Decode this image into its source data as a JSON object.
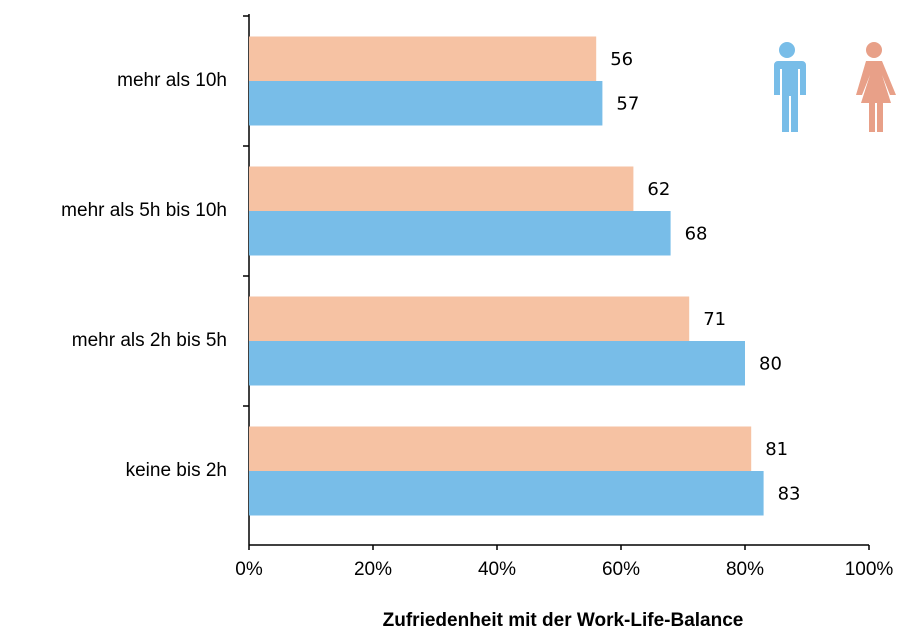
{
  "chart_data": {
    "type": "bar",
    "orientation": "horizontal",
    "x_label": "Zufriedenheit mit der Work-Life-Balance",
    "categories": [
      "mehr als 10h",
      "mehr als 5h bis 10h",
      "mehr als 2h bis 5h",
      "keine bis 2h"
    ],
    "series": [
      {
        "color": "#f6c2a3",
        "values": [
          56,
          62,
          71,
          81
        ]
      },
      {
        "color": "#78bde8",
        "values": [
          57,
          68,
          80,
          83
        ]
      }
    ],
    "xlim": [
      0,
      100
    ],
    "xticks": [
      {
        "value": 0,
        "label": "0%"
      },
      {
        "value": 20,
        "label": "20%"
      },
      {
        "value": 40,
        "label": "40%"
      },
      {
        "value": 60,
        "label": "60%"
      },
      {
        "value": 80,
        "label": "80%"
      },
      {
        "value": 100,
        "label": "100%"
      }
    ],
    "grid": false
  }
}
